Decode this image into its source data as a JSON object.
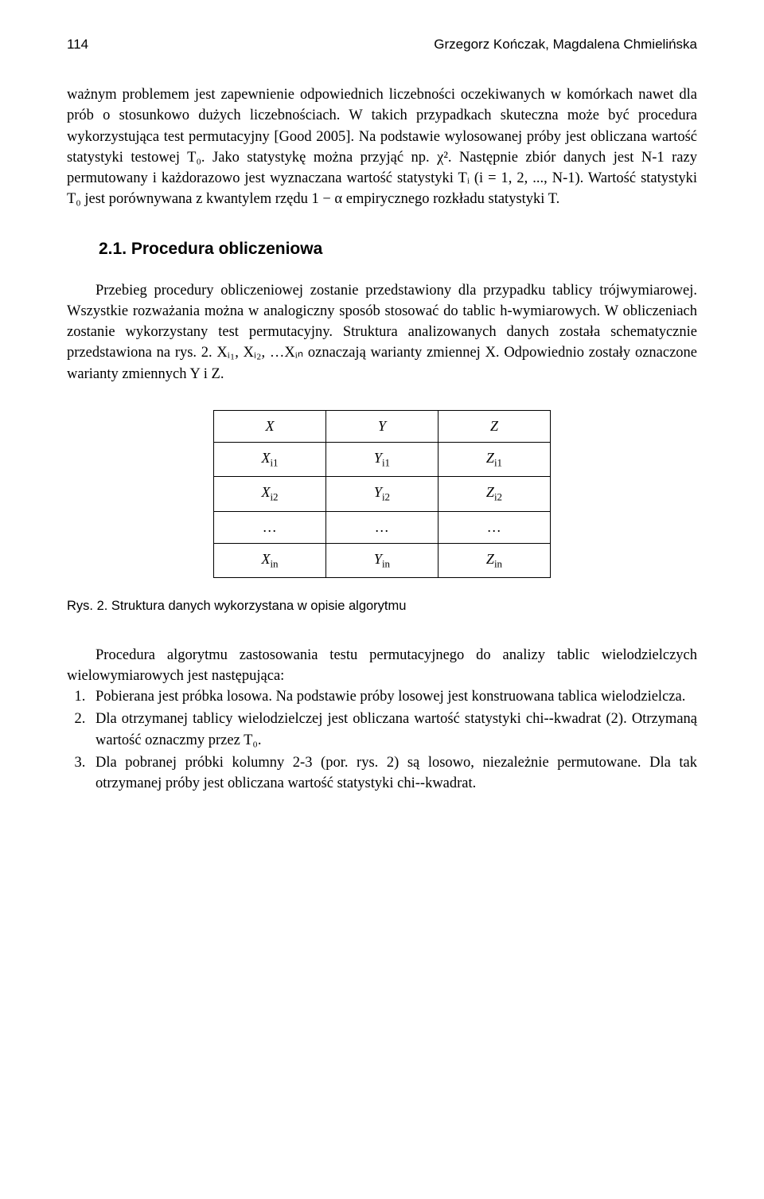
{
  "header": {
    "page_number": "114",
    "authors": "Grzegorz Kończak, Magdalena Chmielińska"
  },
  "paragraph1": "ważnym problemem jest zapewnienie odpowiednich liczebności oczekiwanych w komórkach nawet dla prób o stosunkowo dużych liczebnościach. W takich przypadkach skuteczna może być procedura wykorzystująca test permutacyjny [Good 2005]. Na podstawie wylosowanej próby jest obliczana wartość statystyki testowej T₀. Jako statystykę można przyjąć np. χ². Następnie zbiór danych jest N-1 razy permutowany i każdorazowo jest wyznaczana wartość statystyki Tᵢ (i = 1, 2, ..., N-1). Wartość statystyki T₀ jest porównywana z kwantylem rzędu 1 − α  empirycznego rozkładu statystyki T.",
  "section_heading": "2.1. Procedura obliczeniowa",
  "paragraph2": "Przebieg procedury obliczeniowej zostanie przedstawiony dla przypadku tablicy trójwymiarowej. Wszystkie rozważania można w analogiczny sposób stosować do tablic h-wymiarowych. W obliczeniach zostanie wykorzystany test permutacyjny. Struktura analizowanych danych została schematycznie przedstawiona na rys. 2. Xᵢ₁, Xᵢ₂, …Xᵢₙ oznaczają warianty zmiennej X. Odpowiednio zostały oznaczone warianty zmiennych Y i Z.",
  "table": {
    "rows": [
      [
        "X",
        "Y",
        "Z"
      ],
      [
        "X<sub>i1</sub>",
        "Y<sub>i1</sub>",
        "Z<sub>i1</sub>"
      ],
      [
        "X<sub>i2</sub>",
        "Y<sub>i2</sub>",
        "Z<sub>i2</sub>"
      ],
      [
        "…",
        "…",
        "…"
      ],
      [
        "X<sub>in</sub>",
        "Y<sub>in</sub>",
        "Z<sub>in</sub>"
      ]
    ]
  },
  "figure_caption": "Rys. 2. Struktura danych wykorzystana w opisie algorytmu",
  "paragraph3": "Procedura algorytmu zastosowania testu permutacyjnego do analizy tablic wielodzielczych wielowymiarowych jest następująca:",
  "algorithm": [
    "Pobierana jest próbka losowa. Na podstawie próby losowej jest konstruowana tablica wielodzielcza.",
    "Dla otrzymanej tablicy wielodzielczej jest obliczana wartość statystyki chi-­-kwadrat (2). Otrzymaną wartość oznaczmy przez T₀.",
    "Dla pobranej próbki kolumny 2-3 (por. rys. 2) są losowo, niezależnie permutowane. Dla tak otrzymanej próby jest obliczana wartość statystyki chi-­-kwadrat."
  ]
}
